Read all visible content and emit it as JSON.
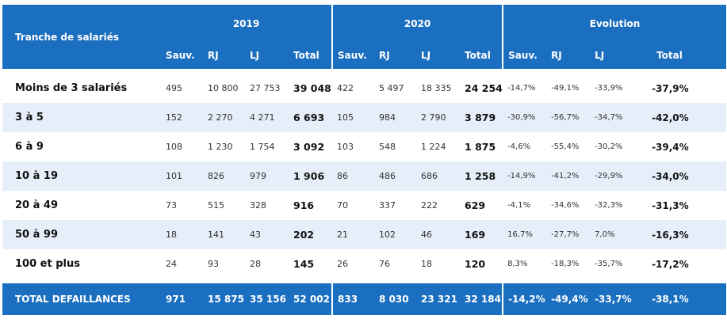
{
  "header": {
    "label": "Tranche de salariés",
    "groups": [
      "2019",
      "2020",
      "Evolution"
    ],
    "subcols": [
      "Sauv.",
      "RJ",
      "LJ",
      "Total"
    ]
  },
  "rows": [
    {
      "label": "Moins de 3 salariés",
      "y2019": [
        "495",
        "10 800",
        "27 753",
        "39 048"
      ],
      "y2020": [
        "422",
        "5 497",
        "18 335",
        "24 254"
      ],
      "evo": [
        "-14,7%",
        "-49,1%",
        "-33,9%",
        "-37,9%"
      ]
    },
    {
      "label": "3 à 5",
      "y2019": [
        "152",
        "2 270",
        "4 271",
        "6 693"
      ],
      "y2020": [
        "105",
        "984",
        "2 790",
        "3 879"
      ],
      "evo": [
        "-30,9%",
        "-56,7%",
        "-34,7%",
        "-42,0%"
      ]
    },
    {
      "label": "6 à 9",
      "y2019": [
        "108",
        "1 230",
        "1 754",
        "3 092"
      ],
      "y2020": [
        "103",
        "548",
        "1 224",
        "1 875"
      ],
      "evo": [
        "-4,6%",
        "-55,4%",
        "-30,2%",
        "-39,4%"
      ]
    },
    {
      "label": "10 à 19",
      "y2019": [
        "101",
        "826",
        "979",
        "1 906"
      ],
      "y2020": [
        "86",
        "486",
        "686",
        "1 258"
      ],
      "evo": [
        "-14,9%",
        "-41,2%",
        "-29,9%",
        "-34,0%"
      ]
    },
    {
      "label": "20 à 49",
      "y2019": [
        "73",
        "515",
        "328",
        "916"
      ],
      "y2020": [
        "70",
        "337",
        "222",
        "629"
      ],
      "evo": [
        "-4,1%",
        "-34,6%",
        "-32,3%",
        "-31,3%"
      ]
    },
    {
      "label": "50 à 99",
      "y2019": [
        "18",
        "141",
        "43",
        "202"
      ],
      "y2020": [
        "21",
        "102",
        "46",
        "169"
      ],
      "evo": [
        "16,7%",
        "-27,7%",
        "7,0%",
        "-16,3%"
      ]
    },
    {
      "label": "100 et plus",
      "y2019": [
        "24",
        "93",
        "28",
        "145"
      ],
      "y2020": [
        "26",
        "76",
        "18",
        "120"
      ],
      "evo": [
        "8,3%",
        "-18,3%",
        "-35,7%",
        "-17,2%"
      ]
    }
  ],
  "total": {
    "label": "TOTAL DEFAILLANCES",
    "y2019": [
      "971",
      "15 875",
      "35 156",
      "52 002"
    ],
    "y2020": [
      "833",
      "8 030",
      "23 321",
      "32 184"
    ],
    "evo": [
      "-14,2%",
      "-49,4%",
      "-33,7%",
      "-38,1%"
    ]
  }
}
